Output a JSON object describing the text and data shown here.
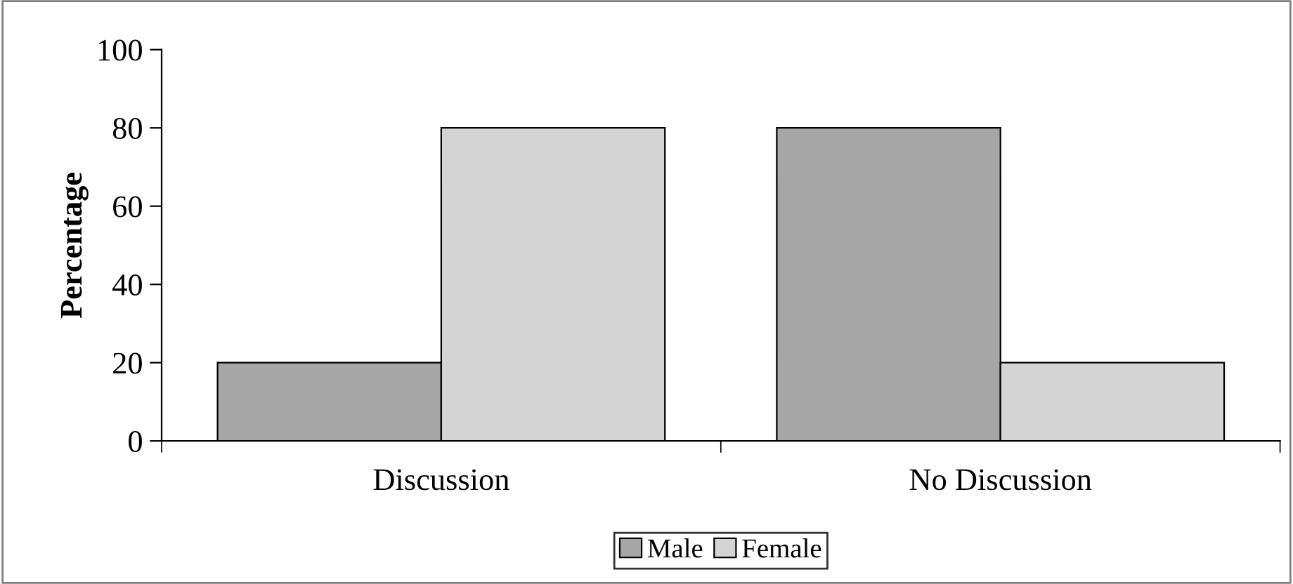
{
  "chart_data": {
    "type": "bar",
    "ylabel": "Percentage",
    "categories": [
      "Discussion",
      "No Discussion"
    ],
    "series": [
      {
        "name": "Male",
        "color": "#a6a6a6",
        "values": [
          20,
          80
        ]
      },
      {
        "name": "Female",
        "color": "#d4d4d4",
        "values": [
          80,
          20
        ]
      }
    ],
    "ylim": [
      0,
      100
    ],
    "yticks": [
      0,
      20,
      40,
      60,
      80,
      100
    ],
    "grid": false,
    "legend": "bottom"
  }
}
